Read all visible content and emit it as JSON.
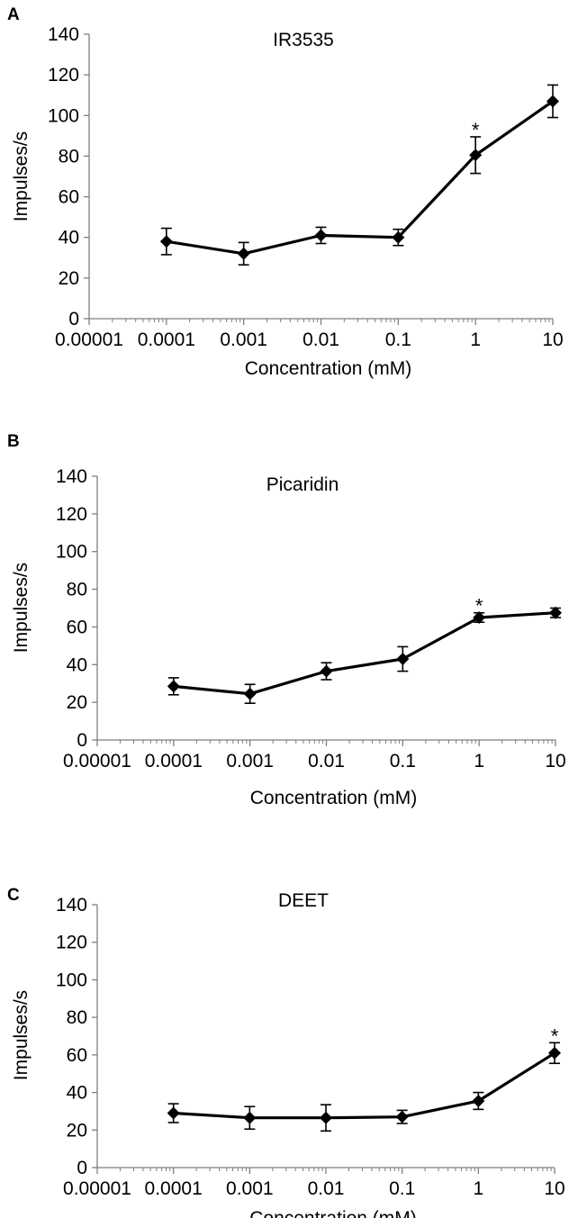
{
  "chart_data": [
    {
      "type": "line",
      "panel": "A",
      "title": "IR3535",
      "xlabel": "Concentration (mM)",
      "ylabel": "Impulses/s",
      "xscale": "log",
      "xlim": [
        1e-05,
        10
      ],
      "ylim": [
        0,
        140
      ],
      "x_ticks": [
        "0.00001",
        "0.0001",
        "0.001",
        "0.01",
        "0.1",
        "1",
        "10"
      ],
      "y_ticks": [
        "0",
        "20",
        "40",
        "60",
        "80",
        "100",
        "120",
        "140"
      ],
      "grid": false,
      "x": [
        0.0001,
        0.001,
        0.01,
        0.1,
        1,
        10
      ],
      "y": [
        38,
        32,
        41,
        40,
        80.5,
        107
      ],
      "error": [
        6.5,
        5.5,
        4,
        4,
        9,
        8
      ],
      "annotations": [
        {
          "text": "*",
          "x": 1
        }
      ]
    },
    {
      "type": "line",
      "panel": "B",
      "title": "Picaridin",
      "xlabel": "Concentration (mM)",
      "ylabel": "Impulses/s",
      "xscale": "log",
      "xlim": [
        1e-05,
        10
      ],
      "ylim": [
        0,
        140
      ],
      "x_ticks": [
        "0.00001",
        "0.0001",
        "0.001",
        "0.01",
        "0.1",
        "1",
        "10"
      ],
      "y_ticks": [
        "0",
        "20",
        "40",
        "60",
        "80",
        "100",
        "120",
        "140"
      ],
      "grid": false,
      "x": [
        0.0001,
        0.001,
        0.01,
        0.1,
        1,
        10
      ],
      "y": [
        28.5,
        24.5,
        36.5,
        43,
        65,
        67.5
      ],
      "error": [
        4.5,
        5,
        4.5,
        6.5,
        2.5,
        2.5
      ],
      "annotations": [
        {
          "text": "*",
          "x": 1
        }
      ]
    },
    {
      "type": "line",
      "panel": "C",
      "title": "DEET",
      "xlabel": "Concentration (mM)",
      "ylabel": "Impulses/s",
      "xscale": "log",
      "xlim": [
        1e-05,
        10
      ],
      "ylim": [
        0,
        140
      ],
      "x_ticks": [
        "0.00001",
        "0.0001",
        "0.001",
        "0.01",
        "0.1",
        "1",
        "10"
      ],
      "y_ticks": [
        "0",
        "20",
        "40",
        "60",
        "80",
        "100",
        "120",
        "140"
      ],
      "grid": false,
      "x": [
        0.0001,
        0.001,
        0.01,
        0.1,
        1,
        10
      ],
      "y": [
        29,
        26.5,
        26.5,
        27,
        35.5,
        61
      ],
      "error": [
        5,
        6,
        7,
        3.5,
        4.5,
        5.5
      ],
      "annotations": [
        {
          "text": "*",
          "x": 10
        }
      ]
    }
  ]
}
